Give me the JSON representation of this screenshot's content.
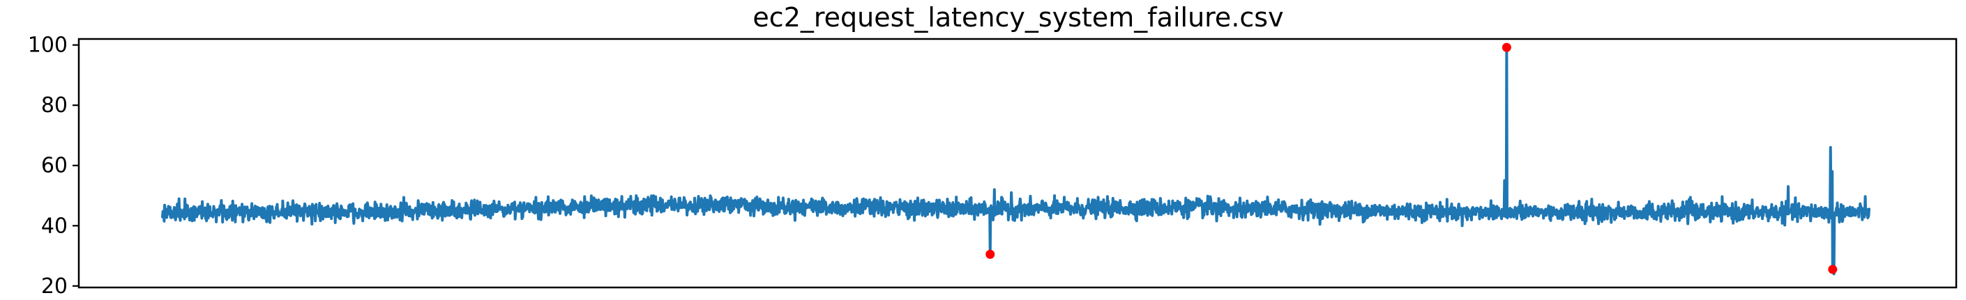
{
  "chart_data": {
    "type": "line",
    "title": "ec2_request_latency_system_failure.csv",
    "xlabel": "",
    "ylabel": "",
    "x_ticks_visible": false,
    "ylim": [
      19.5,
      102
    ],
    "y_ticks": [
      20,
      40,
      60,
      80,
      100
    ],
    "y_tick_labels": [
      "20",
      "40",
      "60",
      "80",
      "100"
    ],
    "grid": false,
    "n_points": 4032,
    "line_color": "#1f77b4",
    "anomaly_color": "#ff0000",
    "baseline": {
      "mean": 44.5,
      "noise_band": [
        40,
        50
      ],
      "drift_peaks": [
        {
          "index": 1150,
          "value": 46.5
        },
        {
          "index": 1600,
          "value": 45.5
        },
        {
          "index": 2400,
          "value": 46.0
        }
      ]
    },
    "notable_values": [
      {
        "index": 1965,
        "value": 52
      },
      {
        "index": 2005,
        "value": 51
      },
      {
        "index": 3170,
        "value": 55
      },
      {
        "index": 3840,
        "value": 53
      },
      {
        "index": 3940,
        "value": 66
      },
      {
        "index": 3944,
        "value": 58
      },
      {
        "index": 3948,
        "value": 24
      }
    ],
    "anomalies": [
      {
        "index": 1955,
        "value": 30.5
      },
      {
        "index": 3175,
        "value": 99.2
      },
      {
        "index": 3945,
        "value": 25.5
      }
    ]
  }
}
